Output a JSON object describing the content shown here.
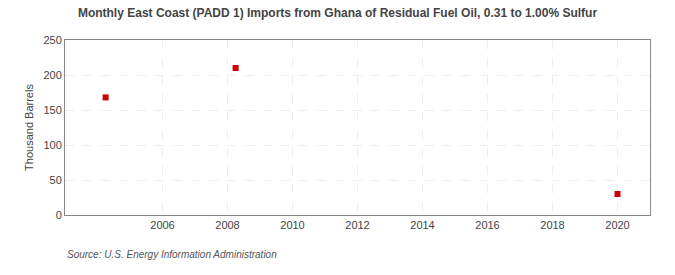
{
  "chart_data": {
    "type": "scatter",
    "title": "Monthly East Coast (PADD 1) Imports from Ghana of Residual Fuel Oil, 0.31 to 1.00% Sulfur",
    "ylabel": "Thousand Barrels",
    "annotations": [
      "Source: U.S. Energy Information Administration"
    ],
    "x": [
      2004.25,
      2008.25,
      2020.0
    ],
    "values": [
      168,
      210,
      30
    ],
    "color": "#cc0000",
    "marker": "square",
    "xlim": [
      2003.0,
      2021.0
    ],
    "ylim": [
      0,
      250
    ],
    "xticks": [
      2006,
      2008,
      2010,
      2012,
      2014,
      2016,
      2018,
      2020
    ],
    "yticks": [
      0,
      50,
      100,
      150,
      200,
      250
    ],
    "grid": true
  }
}
